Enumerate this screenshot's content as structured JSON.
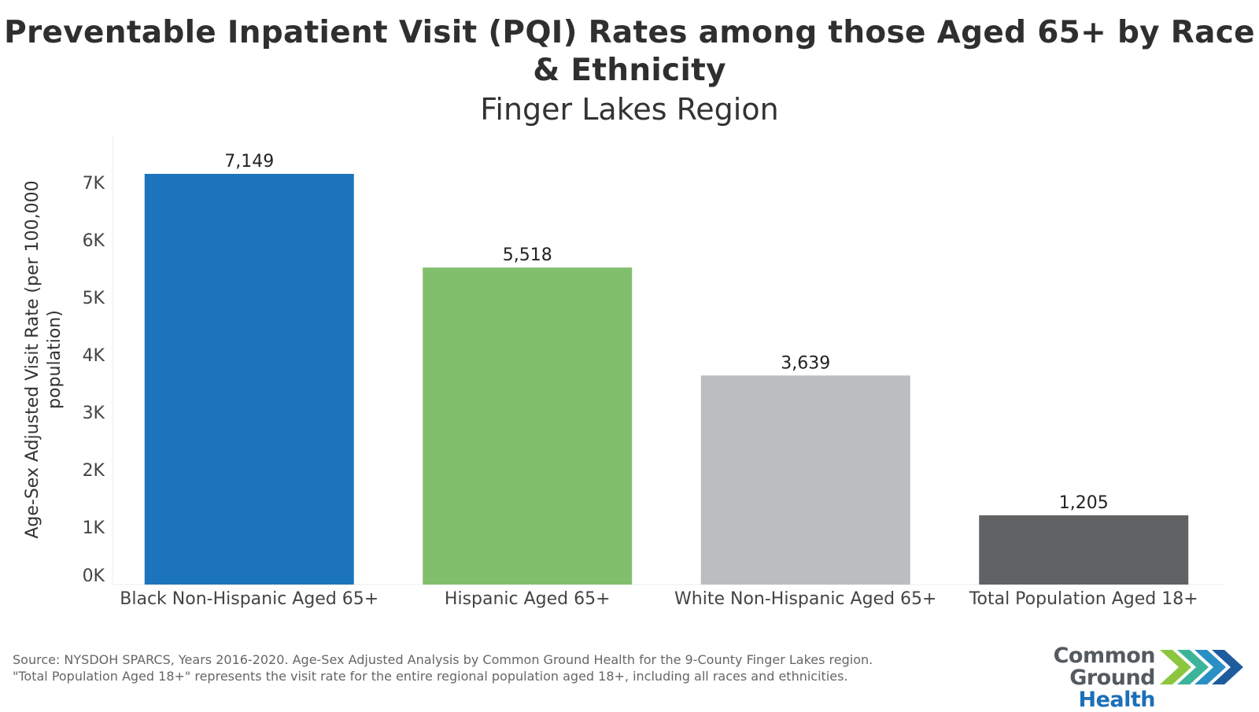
{
  "chart_data": {
    "type": "bar",
    "title": "Preventable Inpatient Visit (PQI) Rates among those Aged 65+ by Race & Ethnicity",
    "subtitle": "Finger Lakes Region",
    "xlabel": "",
    "ylabel": "Age-Sex Adjusted Visit Rate (per 100,000 population)",
    "ylim": [
      0,
      7800
    ],
    "yticks": [
      0,
      1000,
      2000,
      3000,
      4000,
      5000,
      6000,
      7000
    ],
    "ytick_labels": [
      "0K",
      "1K",
      "2K",
      "3K",
      "4K",
      "5K",
      "6K",
      "7K"
    ],
    "categories": [
      "Black Non-Hispanic Aged 65+",
      "Hispanic Aged 65+",
      "White Non-Hispanic Aged 65+",
      "Total Population Aged 18+"
    ],
    "values": [
      7149,
      5518,
      3639,
      1205
    ],
    "data_labels": [
      "7,149",
      "5,518",
      "3,639",
      "1,205"
    ],
    "colors": [
      "#1c75bc",
      "#82bf6d",
      "#bcbdbf",
      "#616264"
    ],
    "grid": false,
    "legend": "none"
  },
  "footer": {
    "source_line1": "Source: NYSDOH SPARCS, Years 2016-2020. Age-Sex Adjusted Analysis by Common Ground Health for the 9-County Finger Lakes region.",
    "source_line2": "\"Total Population Aged 18+\" represents the visit rate for the entire regional population aged 18+, including all races and ethnicities."
  },
  "logo": {
    "line1": "Common Ground",
    "line2": "Health",
    "chevron_colors": [
      "#8cc63f",
      "#3cb49a",
      "#2a8fc4",
      "#1e5c9e"
    ]
  }
}
